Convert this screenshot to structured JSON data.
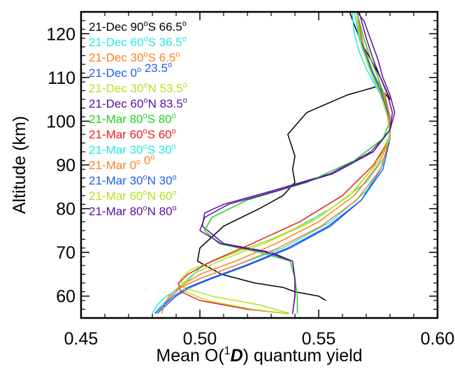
{
  "chart_data": {
    "type": "line",
    "title": "",
    "xlabel": "Mean O(¹D) quantum yield",
    "xlabel_parts": {
      "prefix": "Mean O(",
      "sup": "1",
      "italic": "D",
      "suffix": ") quantum yield"
    },
    "ylabel": "Altitude (km)",
    "xlim": [
      0.45,
      0.6
    ],
    "ylim": [
      55,
      125
    ],
    "xticks": [
      0.45,
      0.5,
      0.55,
      0.6
    ],
    "xtick_labels": [
      "0.45",
      "0.50",
      "0.55",
      "0.60"
    ],
    "yticks": [
      60,
      70,
      80,
      90,
      100,
      110,
      120
    ],
    "ytick_labels": [
      "60",
      "70",
      "80",
      "90",
      "100",
      "110",
      "120"
    ],
    "grid": false,
    "legend_position": "top-left",
    "series": [
      {
        "name": "21-Dec 90°S 66.5°",
        "color": "#000000",
        "x": [
          0.553,
          0.55,
          0.54,
          0.535,
          0.523,
          0.509,
          0.499,
          0.5,
          0.51,
          0.525,
          0.535,
          0.54,
          0.539,
          0.54,
          0.537,
          0.545,
          0.562,
          0.575,
          0.58,
          0.576,
          0.572,
          0.568,
          0.565,
          0.563
        ],
        "y": [
          59,
          60,
          61,
          62,
          63,
          65,
          68,
          71,
          76,
          80,
          83,
          86,
          89,
          92,
          97,
          102,
          106,
          108,
          105,
          110,
          114,
          118,
          122,
          125
        ]
      },
      {
        "name": "21-Dec 60°S 36.5°",
        "color": "#22e8e8",
        "x": [
          0.481,
          0.484,
          0.488,
          0.494,
          0.501,
          0.515,
          0.535,
          0.555,
          0.57,
          0.578,
          0.58,
          0.578,
          0.574,
          0.57,
          0.567,
          0.565,
          0.564
        ],
        "y": [
          56,
          58,
          60,
          63,
          67,
          70,
          74,
          80,
          86,
          92,
          98,
          104,
          108,
          112,
          116,
          120,
          125
        ]
      },
      {
        "name": "21-Dec 30°S 6.5°",
        "color": "#ff7f1e",
        "x": [
          0.484,
          0.485,
          0.487,
          0.491,
          0.5,
          0.515,
          0.532,
          0.55,
          0.565,
          0.575,
          0.58,
          0.58,
          0.578,
          0.574,
          0.57,
          0.567,
          0.566
        ],
        "y": [
          56,
          58,
          60,
          62,
          65,
          68,
          72,
          77,
          83,
          90,
          96,
          101,
          106,
          110,
          114,
          119,
          125
        ]
      },
      {
        "name": "21-Dec 0° 23.5°",
        "color": "#1e5fe8",
        "x": [
          0.482,
          0.486,
          0.49,
          0.496,
          0.505,
          0.52,
          0.538,
          0.555,
          0.568,
          0.576,
          0.58,
          0.579,
          0.576,
          0.572,
          0.568,
          0.566
        ],
        "y": [
          56,
          58,
          60,
          62,
          64,
          67,
          71,
          76,
          82,
          89,
          96,
          102,
          107,
          112,
          118,
          125
        ]
      },
      {
        "name": "21-Dec 30°N 53.5°",
        "color": "#b4e01e",
        "x": [
          0.538,
          0.525,
          0.505,
          0.493,
          0.492,
          0.496,
          0.51,
          0.53,
          0.55,
          0.565,
          0.575,
          0.58,
          0.579,
          0.576,
          0.572,
          0.568,
          0.566
        ],
        "y": [
          56,
          58,
          60,
          62,
          64,
          66,
          69,
          73,
          78,
          84,
          91,
          97,
          102,
          107,
          112,
          118,
          125
        ]
      },
      {
        "name": "21-Dec 60°N 83.5°",
        "color": "#5a0ea0",
        "x": [
          0.539,
          0.54,
          0.54,
          0.539,
          0.53,
          0.51,
          0.501,
          0.502,
          0.51,
          0.53,
          0.555,
          0.572,
          0.58,
          0.582,
          0.58,
          0.577,
          0.575,
          0.573,
          0.571,
          0.569,
          0.566
        ],
        "y": [
          56,
          60,
          64,
          68,
          70,
          72,
          76,
          79,
          81,
          84,
          88,
          93,
          98,
          102,
          106,
          110,
          114,
          117,
          120,
          123,
          125
        ]
      },
      {
        "name": "21-Mar 80°S 80°",
        "color": "#1ed21e",
        "x": [
          0.541,
          0.541,
          0.54,
          0.538,
          0.525,
          0.508,
          0.502,
          0.505,
          0.52,
          0.545,
          0.565,
          0.577,
          0.58,
          0.578,
          0.575,
          0.572,
          0.569,
          0.566
        ],
        "y": [
          56,
          60,
          64,
          68,
          70,
          72,
          75,
          78,
          82,
          86,
          91,
          96,
          100,
          105,
          110,
          114,
          119,
          125
        ]
      },
      {
        "name": "21-Mar 60°S 60°",
        "color": "#e81e1e",
        "x": [
          0.537,
          0.52,
          0.5,
          0.492,
          0.491,
          0.495,
          0.505,
          0.522,
          0.542,
          0.56,
          0.573,
          0.58,
          0.58,
          0.577,
          0.573,
          0.569,
          0.566
        ],
        "y": [
          56,
          57,
          59,
          61,
          63,
          65,
          68,
          72,
          77,
          83,
          90,
          96,
          101,
          106,
          111,
          117,
          125
        ]
      },
      {
        "name": "21-Mar 30°S 30°",
        "color": "#22e8e8",
        "x": [
          0.48,
          0.482,
          0.486,
          0.492,
          0.5,
          0.515,
          0.535,
          0.555,
          0.57,
          0.578,
          0.58,
          0.578,
          0.574,
          0.57,
          0.567,
          0.565
        ],
        "y": [
          56,
          58,
          60,
          62,
          64,
          67,
          71,
          77,
          84,
          91,
          98,
          104,
          109,
          114,
          119,
          125
        ]
      },
      {
        "name": "21-Mar 0° 0°",
        "color": "#ff7f1e",
        "x": [
          0.484,
          0.485,
          0.488,
          0.492,
          0.5,
          0.515,
          0.533,
          0.551,
          0.566,
          0.576,
          0.58,
          0.58,
          0.577,
          0.573,
          0.569,
          0.566
        ],
        "y": [
          56,
          58,
          60,
          62,
          64,
          67,
          71,
          76,
          82,
          89,
          96,
          101,
          106,
          111,
          117,
          125
        ]
      },
      {
        "name": "21-Mar 30°N 30°",
        "color": "#1e5fe8",
        "x": [
          0.481,
          0.485,
          0.489,
          0.495,
          0.504,
          0.519,
          0.537,
          0.554,
          0.568,
          0.577,
          0.58,
          0.579,
          0.576,
          0.572,
          0.568,
          0.566
        ],
        "y": [
          56,
          58,
          60,
          62,
          64,
          67,
          71,
          76,
          82,
          89,
          96,
          102,
          107,
          112,
          118,
          125
        ]
      },
      {
        "name": "21-Mar 60°N 60°",
        "color": "#b4e01e",
        "x": [
          0.537,
          0.522,
          0.503,
          0.494,
          0.493,
          0.497,
          0.508,
          0.527,
          0.547,
          0.563,
          0.574,
          0.58,
          0.579,
          0.576,
          0.572,
          0.568,
          0.566
        ],
        "y": [
          56,
          57,
          59,
          61,
          63,
          65,
          68,
          72,
          77,
          83,
          90,
          96,
          101,
          106,
          111,
          117,
          125
        ]
      },
      {
        "name": "21-Mar 80°N 80°",
        "color": "#5a0ea0",
        "x": [
          0.539,
          0.54,
          0.54,
          0.539,
          0.528,
          0.509,
          0.5,
          0.502,
          0.512,
          0.532,
          0.556,
          0.573,
          0.58,
          0.581,
          0.579,
          0.576,
          0.573,
          0.57,
          0.567
        ],
        "y": [
          56,
          60,
          64,
          68,
          70,
          72,
          75,
          78,
          81,
          84,
          88,
          93,
          98,
          102,
          106,
          110,
          114,
          119,
          125
        ]
      }
    ],
    "legend": [
      {
        "date": "21-Dec",
        "lat": "90",
        "hemi": "S",
        "angle": "66.5",
        "color": "#000000"
      },
      {
        "date": "21-Dec",
        "lat": "60",
        "hemi": "S",
        "angle": "36.5",
        "color": "#22e8e8"
      },
      {
        "date": "21-Dec",
        "lat": "30",
        "hemi": "S",
        "angle": "6.5",
        "color": "#ff7f1e"
      },
      {
        "date": "21-Dec",
        "lat": "0",
        "hemi": "",
        "angle": "23.5",
        "color": "#1e5fe8"
      },
      {
        "date": "21-Dec",
        "lat": "30",
        "hemi": "N",
        "angle": "53.5",
        "color": "#b4e01e"
      },
      {
        "date": "21-Dec",
        "lat": "60",
        "hemi": "N",
        "angle": "83.5",
        "color": "#5a0ea0"
      },
      {
        "date": "21-Mar",
        "lat": "80",
        "hemi": "S",
        "angle": "80",
        "color": "#1ed21e"
      },
      {
        "date": "21-Mar",
        "lat": "60",
        "hemi": "S",
        "angle": "60",
        "color": "#e81e1e"
      },
      {
        "date": "21-Mar",
        "lat": "30",
        "hemi": "S",
        "angle": "30",
        "color": "#22e8e8"
      },
      {
        "date": "21-Mar",
        "lat": "0",
        "hemi": "",
        "angle": "0",
        "color": "#ff7f1e"
      },
      {
        "date": "21-Mar",
        "lat": "30",
        "hemi": "N",
        "angle": "30",
        "color": "#1e5fe8"
      },
      {
        "date": "21-Mar",
        "lat": "60",
        "hemi": "N",
        "angle": "60",
        "color": "#b4e01e"
      },
      {
        "date": "21-Mar",
        "lat": "80",
        "hemi": "N",
        "angle": "80",
        "color": "#5a0ea0"
      }
    ],
    "degree_symbol": "o"
  }
}
